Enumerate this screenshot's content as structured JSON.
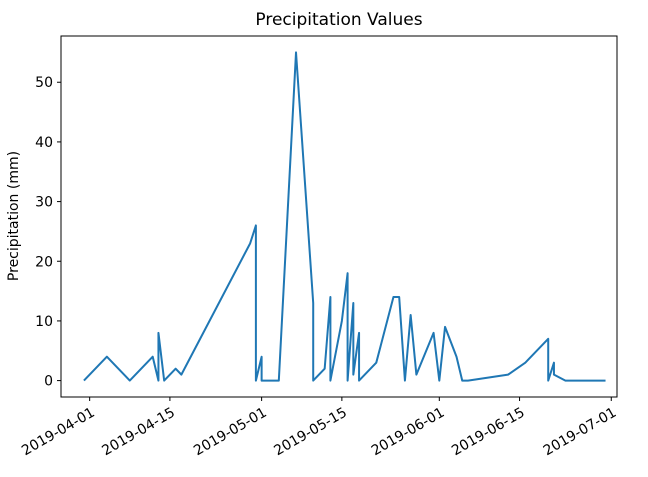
{
  "chart_data": {
    "type": "line",
    "title": "Precipitation Values",
    "xlabel": "",
    "ylabel": "Precipitation (mm)",
    "xlim": [
      "2019-03-27",
      "2019-07-02"
    ],
    "ylim": [
      -2.75,
      57.75
    ],
    "xticks": [
      "2019-04-01",
      "2019-04-15",
      "2019-05-01",
      "2019-05-15",
      "2019-06-01",
      "2019-06-15",
      "2019-07-01"
    ],
    "yticks": [
      0,
      10,
      20,
      30,
      40,
      50
    ],
    "grid": false,
    "color": "#1f77b4",
    "series": [
      {
        "x": [
          "2019-03-31",
          "2019-04-04",
          "2019-04-08",
          "2019-04-08",
          "2019-04-12",
          "2019-04-13",
          "2019-04-13",
          "2019-04-14",
          "2019-04-14",
          "2019-04-16",
          "2019-04-17",
          "2019-04-29",
          "2019-04-30",
          "2019-04-30",
          "2019-05-01",
          "2019-05-01",
          "2019-05-04",
          "2019-05-07",
          "2019-05-10",
          "2019-05-10",
          "2019-05-12",
          "2019-05-13",
          "2019-05-13",
          "2019-05-15",
          "2019-05-16",
          "2019-05-16",
          "2019-05-17",
          "2019-05-17",
          "2019-05-18",
          "2019-05-18",
          "2019-05-21",
          "2019-05-24",
          "2019-05-25",
          "2019-05-26",
          "2019-05-27",
          "2019-05-28",
          "2019-05-31",
          "2019-06-01",
          "2019-06-02",
          "2019-06-04",
          "2019-06-05",
          "2019-06-06",
          "2019-06-13",
          "2019-06-16",
          "2019-06-20",
          "2019-06-20",
          "2019-06-21",
          "2019-06-21",
          "2019-06-23",
          "2019-06-30"
        ],
        "values": [
          0,
          4,
          0,
          0,
          4,
          0,
          8,
          0,
          0,
          2,
          1,
          23,
          26,
          0,
          4,
          0,
          0,
          55,
          13,
          0,
          2,
          14,
          0,
          10,
          18,
          0,
          13,
          1,
          8,
          0,
          3,
          14,
          14,
          0,
          11,
          1,
          8,
          0,
          9,
          4,
          0,
          0,
          1,
          3,
          7,
          0,
          3,
          1,
          0,
          0
        ]
      }
    ]
  }
}
